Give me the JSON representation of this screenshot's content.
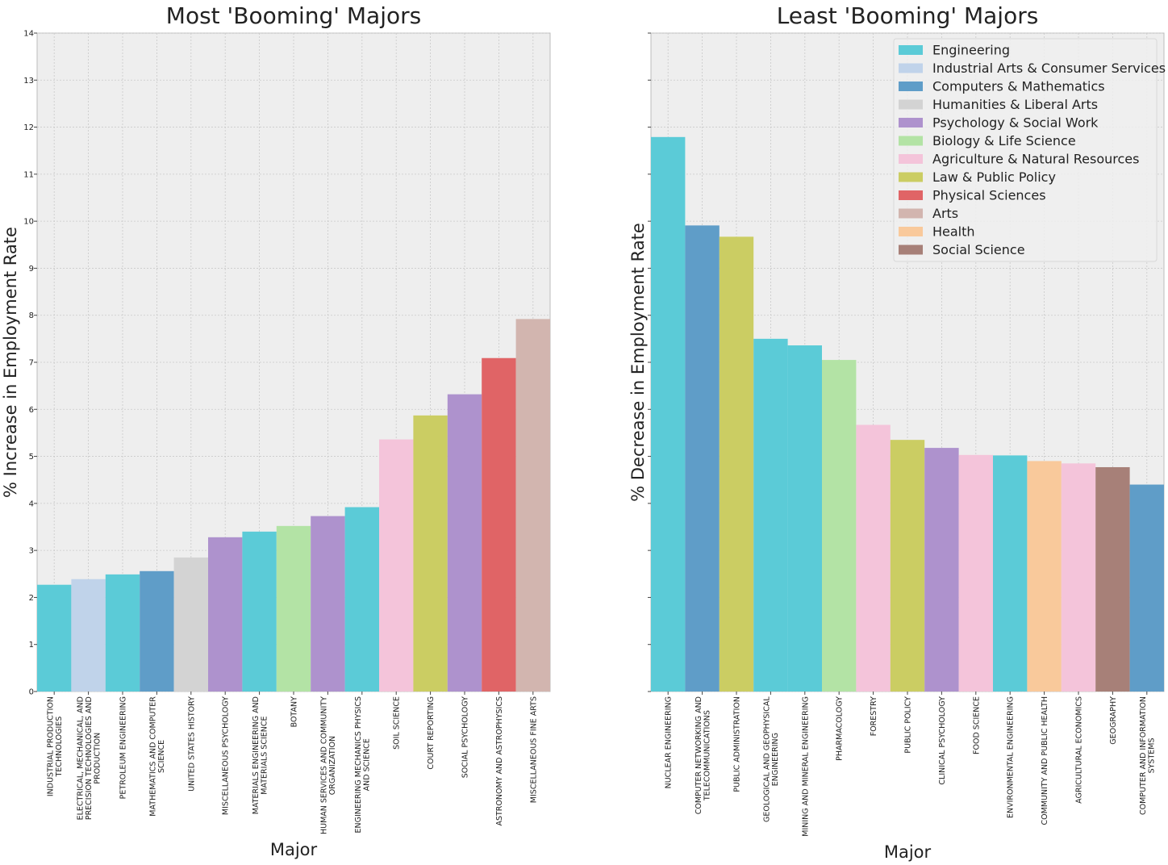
{
  "colors": {
    "Engineering": "#5bcbd7",
    "Industrial Arts & Consumer Services": "#c0d3ea",
    "Computers & Mathematics": "#5f9dc8",
    "Humanities & Liberal Arts": "#d3d3d3",
    "Psychology & Social Work": "#ae92cd",
    "Biology & Life Science": "#b3e3a5",
    "Agriculture & Natural Resources": "#f4c4da",
    "Law & Public Policy": "#cbcd63",
    "Physical Sciences": "#e06466",
    "Arts": "#d2b5af",
    "Health": "#f9c99b",
    "Social Science": "#a78078"
  },
  "chart_data": [
    {
      "type": "bar",
      "title": "Most 'Booming' Majors",
      "xlabel": "Major",
      "ylabel": "% Increase in Employment Rate",
      "ylim": [
        0,
        14
      ],
      "yticks": [
        "0",
        "1",
        "2",
        "3",
        "4",
        "5",
        "6",
        "7",
        "8",
        "9",
        "10",
        "11",
        "12",
        "13",
        "14"
      ],
      "grid": true,
      "categories": [
        [
          "INDUSTRIAL PRODUCTION",
          "TECHNOLOGIES"
        ],
        [
          "ELECTRICAL, MECHANICAL, AND",
          "PRECISION TECHNOLOGIES AND",
          "PRODUCTION"
        ],
        [
          "PETROLEUM ENGINEERING"
        ],
        [
          "MATHEMATICS AND COMPUTER",
          "SCIENCE"
        ],
        [
          "UNITED STATES HISTORY"
        ],
        [
          "MISCELLANEOUS PSYCHOLOGY"
        ],
        [
          "MATERIALS ENGINEERING AND",
          "MATERIALS SCIENCE"
        ],
        [
          "BOTANY"
        ],
        [
          "HUMAN SERVICES AND COMMUNITY",
          "ORGANIZATION"
        ],
        [
          "ENGINEERING MECHANICS PHYSICS",
          "AND SCIENCE"
        ],
        [
          "SOIL SCIENCE"
        ],
        [
          "COURT REPORTING"
        ],
        [
          "SOCIAL PSYCHOLOGY"
        ],
        [
          "ASTRONOMY AND ASTROPHYSICS"
        ],
        [
          "MISCELLANEOUS FINE ARTS"
        ]
      ],
      "values": [
        2.27,
        2.39,
        2.49,
        2.56,
        2.85,
        3.28,
        3.4,
        3.52,
        3.73,
        3.92,
        5.36,
        5.87,
        6.32,
        7.09,
        7.92
      ],
      "groups": [
        "Engineering",
        "Industrial Arts & Consumer Services",
        "Engineering",
        "Computers & Mathematics",
        "Humanities & Liberal Arts",
        "Psychology & Social Work",
        "Engineering",
        "Biology & Life Science",
        "Psychology & Social Work",
        "Engineering",
        "Agriculture & Natural Resources",
        "Law & Public Policy",
        "Psychology & Social Work",
        "Physical Sciences",
        "Arts"
      ]
    },
    {
      "type": "bar",
      "title": "Least 'Booming' Majors",
      "xlabel": "Major",
      "ylabel": "% Decrease in Employment Rate",
      "ylim": [
        0,
        14
      ],
      "grid": true,
      "legend_position": "top-right",
      "legend": [
        "Engineering",
        "Industrial Arts & Consumer Services",
        "Computers & Mathematics",
        "Humanities & Liberal Arts",
        "Psychology & Social Work",
        "Biology & Life Science",
        "Agriculture & Natural Resources",
        "Law & Public Policy",
        "Physical Sciences",
        "Arts",
        "Health",
        "Social Science"
      ],
      "categories": [
        [
          "NUCLEAR ENGINEERING"
        ],
        [
          "COMPUTER NETWORKING AND",
          "TELECOMMUNICATIONS"
        ],
        [
          "PUBLIC ADMINISTRATION"
        ],
        [
          "GEOLOGICAL AND GEOPHYSICAL",
          "ENGINEERING"
        ],
        [
          "MINING AND MINERAL ENGINEERING"
        ],
        [
          "PHARMACOLOGY"
        ],
        [
          "FORESTRY"
        ],
        [
          "PUBLIC POLICY"
        ],
        [
          "CLINICAL PSYCHOLOGY"
        ],
        [
          "FOOD SCIENCE"
        ],
        [
          "ENVIRONMENTAL ENGINEERING"
        ],
        [
          "COMMUNITY AND PUBLIC HEALTH"
        ],
        [
          "AGRICULTURAL ECONOMICS"
        ],
        [
          "GEOGRAPHY"
        ],
        [
          "COMPUTER AND INFORMATION",
          "SYSTEMS"
        ]
      ],
      "values": [
        11.79,
        9.91,
        9.67,
        7.5,
        7.36,
        7.05,
        5.67,
        5.35,
        5.18,
        5.03,
        5.02,
        4.9,
        4.85,
        4.77,
        4.4
      ],
      "groups": [
        "Engineering",
        "Computers & Mathematics",
        "Law & Public Policy",
        "Engineering",
        "Engineering",
        "Biology & Life Science",
        "Agriculture & Natural Resources",
        "Law & Public Policy",
        "Psychology & Social Work",
        "Agriculture & Natural Resources",
        "Engineering",
        "Health",
        "Agriculture & Natural Resources",
        "Social Science",
        "Computers & Mathematics"
      ]
    }
  ]
}
